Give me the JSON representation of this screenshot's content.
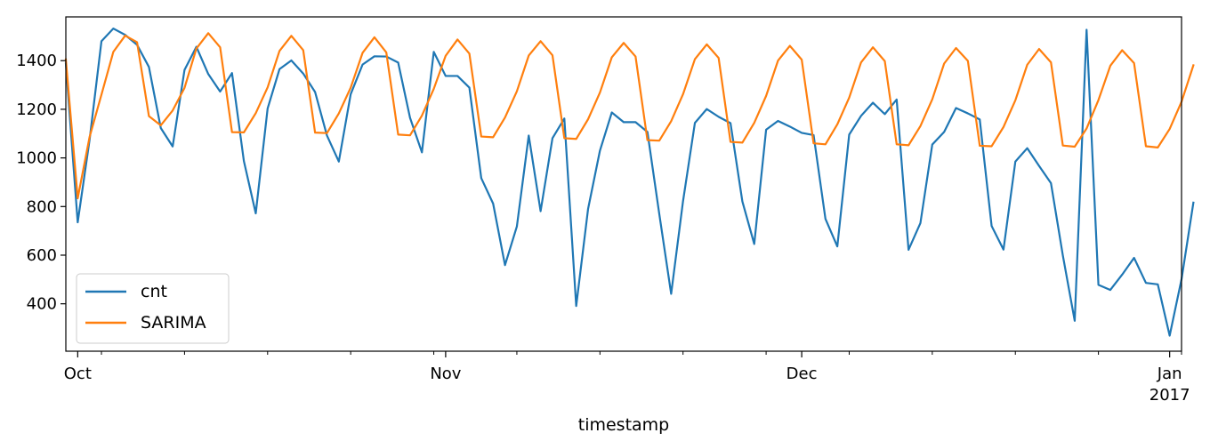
{
  "chart_data": {
    "type": "line",
    "title": "",
    "xlabel": "timestamp",
    "ylabel": "",
    "x_start": "2016-09-30",
    "x_end": "2017-01-02",
    "xlim": [
      "2016-09-30",
      "2017-01-02"
    ],
    "ylim": [
      205,
      1580
    ],
    "grid": false,
    "legend_position": "lower-left",
    "y_ticks": [
      400,
      600,
      800,
      1000,
      1200,
      1400
    ],
    "x_major_ticks": [
      {
        "date": "2016-10-01",
        "label": "Oct",
        "sublabel": ""
      },
      {
        "date": "2016-11-01",
        "label": "Nov",
        "sublabel": ""
      },
      {
        "date": "2016-12-01",
        "label": "Dec",
        "sublabel": ""
      },
      {
        "date": "2017-01-01",
        "label": "Jan",
        "sublabel": "2017"
      }
    ],
    "x_minor_ticks": [
      "2016-10-03",
      "2016-10-10",
      "2016-10-17",
      "2016-10-24",
      "2016-10-31",
      "2016-11-07",
      "2016-11-14",
      "2016-11-21",
      "2016-11-28",
      "2016-12-05",
      "2016-12-12",
      "2016-12-19",
      "2016-12-26",
      "2017-01-02"
    ],
    "series": [
      {
        "name": "cnt",
        "color": "#1f77b4",
        "values": [
          1389,
          735,
          1074,
          1480,
          1532,
          1506,
          1465,
          1374,
          1123,
          1047,
          1362,
          1457,
          1345,
          1273,
          1349,
          987,
          772,
          1203,
          1365,
          1401,
          1347,
          1271,
          1092,
          985,
          1262,
          1384,
          1418,
          1417,
          1392,
          1165,
          1023,
          1436,
          1337,
          1337,
          1289,
          917,
          812,
          559,
          718,
          1092,
          781,
          1081,
          1162,
          391,
          790,
          1030,
          1187,
          1147,
          1147,
          1107,
          769,
          441,
          822,
          1144,
          1201,
          1169,
          1143,
          821,
          646,
          1116,
          1152,
          1129,
          1103,
          1094,
          749,
          636,
          1096,
          1173,
          1227,
          1180,
          1240,
          622,
          732,
          1055,
          1107,
          1205,
          1183,
          1158,
          720,
          623,
          985,
          1040,
          967,
          896,
          599,
          330,
          1527,
          478,
          457,
          520,
          589,
          486,
          480,
          269,
          501,
          816
        ]
      },
      {
        "name": "SARIMA",
        "color": "#ff7f0e",
        "values": [
          1405,
          834,
          1086,
          1260,
          1436,
          1503,
          1476,
          1172,
          1134,
          1195,
          1288,
          1450,
          1513,
          1455,
          1106,
          1105,
          1184,
          1290,
          1440,
          1502,
          1443,
          1104,
          1102,
          1183,
          1289,
          1432,
          1496,
          1434,
          1096,
          1093,
          1174,
          1284,
          1420,
          1487,
          1429,
          1088,
          1085,
          1166,
          1274,
          1421,
          1480,
          1422,
          1081,
          1078,
          1159,
          1269,
          1414,
          1473,
          1417,
          1073,
          1071,
          1151,
          1262,
          1406,
          1467,
          1411,
          1066,
          1063,
          1144,
          1255,
          1400,
          1461,
          1404,
          1060,
          1056,
          1138,
          1248,
          1393,
          1455,
          1398,
          1056,
          1052,
          1131,
          1241,
          1388,
          1452,
          1399,
          1050,
          1048,
          1127,
          1237,
          1383,
          1448,
          1393,
          1051,
          1046,
          1121,
          1238,
          1379,
          1443,
          1390,
          1048,
          1043,
          1119,
          1231,
          1381
        ]
      }
    ]
  }
}
